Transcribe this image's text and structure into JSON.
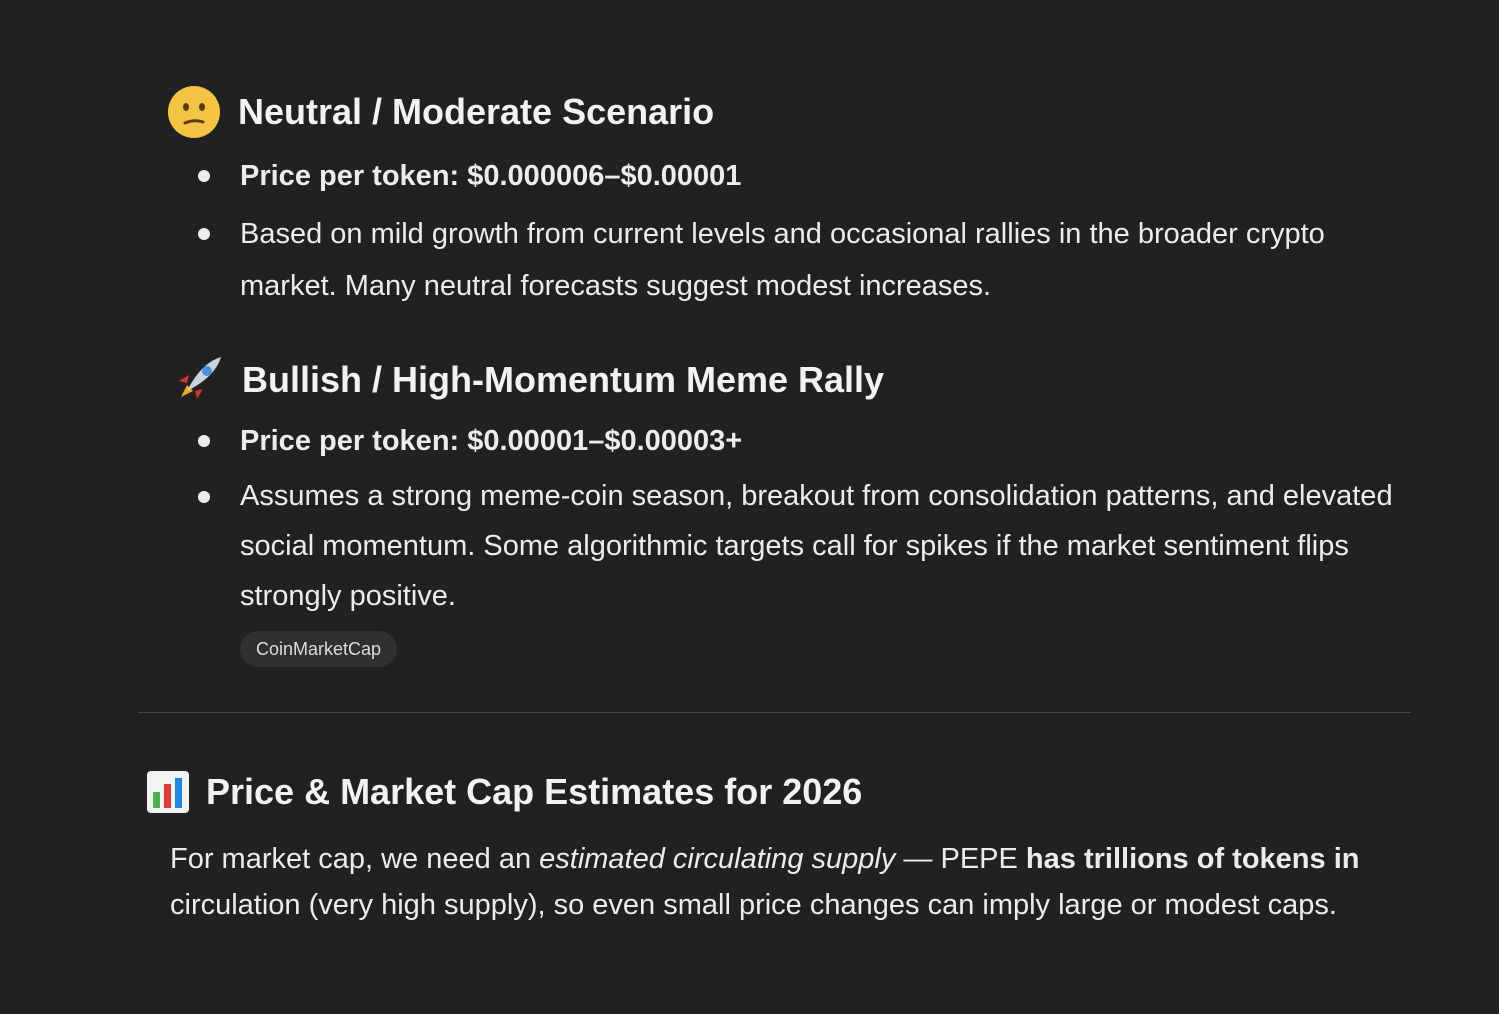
{
  "sections": [
    {
      "icon": "confused-face-icon",
      "title": "Neutral / Moderate Scenario",
      "bullets": [
        "Price per token: $0.000006–$0.00001",
        "Based on mild growth from current levels and occasional rallies in the broader crypto market. Many neutral forecasts suggest modest increases."
      ]
    },
    {
      "icon": "rocket-icon",
      "title": "Bullish / High-Momentum Meme Rally",
      "bullets": [
        "Price per token: $0.00001–$0.00003+",
        "Assumes a strong meme-coin season, breakout from consolidation patterns, and elevated social momentum. Some algorithmic targets call for spikes if the market sentiment flips strongly positive."
      ],
      "source": "CoinMarketCap"
    }
  ],
  "estimates": {
    "icon": "bar-chart-icon",
    "title": "Price & Market Cap Estimates for 2026",
    "p1": "For market cap, we need an ",
    "p_italic": "estimated circulating supply",
    "p2": " — PEPE ",
    "p_bold": "has trillions of tokens in",
    "p3": " circulation (very high supply), so even small price changes can imply large or modest caps."
  }
}
